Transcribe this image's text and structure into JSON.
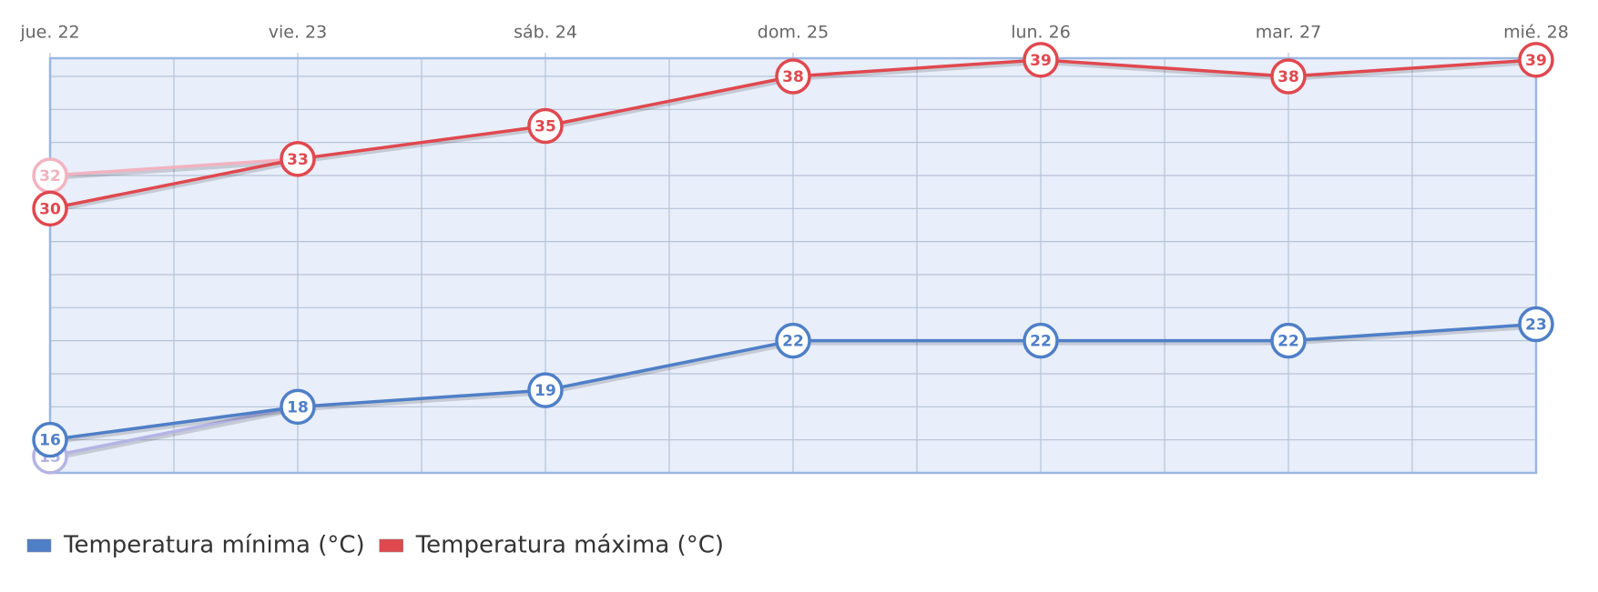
{
  "chart_data": {
    "type": "line",
    "categories": [
      "jue. 22",
      "vie. 23",
      "sáb. 24",
      "dom. 25",
      "lun. 26",
      "mar. 27",
      "mié. 28"
    ],
    "series": [
      {
        "color": "#f2b3c0",
        "values": [
          32,
          33,
          null,
          null,
          null,
          null,
          null
        ]
      },
      {
        "color": "#b4b4e4",
        "values": [
          15,
          18,
          null,
          null,
          null,
          null,
          null
        ]
      },
      {
        "name": "Temperatura mínima (°C)",
        "color": "#4f7fc7",
        "values": [
          16,
          18,
          19,
          22,
          22,
          22,
          23
        ]
      },
      {
        "name": "Temperatura máxima (°C)",
        "color": "#e0484f",
        "values": [
          30,
          33,
          35,
          38,
          39,
          38,
          39
        ]
      }
    ],
    "ylim": [
      14,
      39.1
    ],
    "yticks": [
      14,
      16,
      18,
      20,
      22,
      24,
      26,
      28,
      30,
      32,
      34,
      36,
      38
    ],
    "grid": true,
    "legend": "bottom-left"
  }
}
